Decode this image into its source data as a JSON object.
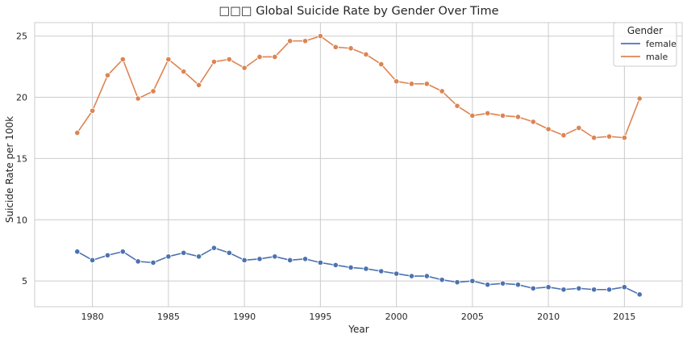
{
  "chart_data": {
    "type": "line",
    "title": "□□□ Global Suicide Rate by Gender Over Time",
    "xlabel": "Year",
    "ylabel": "Suicide Rate per 100k",
    "xlim": [
      1976.2,
      2018.8
    ],
    "ylim": [
      2.9,
      26.1
    ],
    "xticks": [
      1980,
      1985,
      1990,
      1995,
      2000,
      2005,
      2010,
      2015
    ],
    "yticks": [
      5,
      10,
      15,
      20,
      25
    ],
    "grid": true,
    "legend": {
      "title": "Gender",
      "placement": "top-right"
    },
    "x": [
      1979,
      1980,
      1981,
      1982,
      1983,
      1984,
      1985,
      1986,
      1987,
      1988,
      1989,
      1990,
      1991,
      1992,
      1993,
      1994,
      1995,
      1996,
      1997,
      1998,
      1999,
      2000,
      2001,
      2002,
      2003,
      2004,
      2005,
      2006,
      2007,
      2008,
      2009,
      2010,
      2011,
      2012,
      2013,
      2014,
      2015,
      2016
    ],
    "series": [
      {
        "name": "female",
        "color": "#4c72b0",
        "values": [
          7.4,
          6.7,
          7.1,
          7.4,
          6.6,
          6.5,
          7.0,
          7.3,
          7.0,
          7.7,
          7.3,
          6.7,
          6.8,
          7.0,
          6.7,
          6.8,
          6.5,
          6.3,
          6.1,
          6.0,
          5.8,
          5.6,
          5.4,
          5.4,
          5.1,
          4.9,
          5.0,
          4.7,
          4.8,
          4.7,
          4.4,
          4.5,
          4.3,
          4.4,
          4.3,
          4.3,
          4.5,
          3.9
        ]
      },
      {
        "name": "male",
        "color": "#dd8452",
        "values": [
          17.1,
          18.9,
          21.8,
          23.1,
          19.9,
          20.5,
          23.1,
          22.1,
          21.0,
          22.9,
          23.1,
          22.4,
          23.3,
          23.3,
          24.6,
          24.6,
          25.0,
          24.1,
          24.0,
          23.5,
          22.7,
          21.3,
          21.1,
          21.1,
          20.5,
          19.3,
          18.5,
          18.7,
          18.5,
          18.4,
          18.0,
          17.4,
          16.9,
          17.5,
          16.7,
          16.8,
          16.7,
          19.9
        ]
      }
    ]
  }
}
